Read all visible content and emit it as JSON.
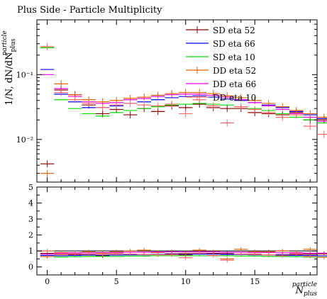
{
  "chart_data": {
    "type": "scatter",
    "title": "Plus Side - Particle Multiplicity",
    "ylabel": "1/N, dN/dN",
    "ylabel_sub": "plus",
    "ylabel_sup": "particle",
    "xlabel": "N",
    "xlabel_sub": "plus",
    "xlabel_sup": "particle",
    "yscale": "log",
    "xlim": [
      -0.75,
      19.5
    ],
    "ylim": [
      0.0022,
      0.7
    ],
    "xticks": [
      0,
      5,
      10,
      15
    ],
    "xtick_labels": [
      "0",
      "5",
      "10",
      "15"
    ],
    "yticks": [
      0.01,
      0.1
    ],
    "ytick_labels": [
      "10⁻²",
      "10⁻¹"
    ],
    "ratio": {
      "ylim": [
        -0.5,
        5.0
      ],
      "yticks": [
        0,
        1,
        2,
        3,
        4,
        5
      ],
      "ytick_labels": [
        "0",
        "1",
        "2",
        "3",
        "4",
        "5"
      ],
      "reference_line": 1.0
    },
    "legend_position": "top-right",
    "series": [
      {
        "name": "SD eta 52",
        "color": "#8b0000",
        "cross": true,
        "values": [
          0.0042,
          0.058,
          0.049,
          0.034,
          0.025,
          0.029,
          0.024,
          0.03,
          0.027,
          0.033,
          0.031,
          0.035,
          0.031,
          0.03,
          0.03,
          0.026,
          0.025,
          0.024,
          0.026,
          0.02,
          0.02
        ],
        "ratio": [
          0.85,
          0.78,
          0.78,
          0.77,
          0.7,
          0.82,
          0.78,
          0.78,
          0.78,
          0.82,
          0.76,
          0.82,
          0.85,
          0.84,
          0.8,
          0.8,
          0.75,
          0.76,
          0.78,
          0.8,
          0.82
        ]
      },
      {
        "name": "SD eta 66",
        "color": "#0000ff",
        "cross": false,
        "values": [
          0.12,
          0.05,
          0.038,
          0.031,
          0.031,
          0.033,
          0.036,
          0.038,
          0.041,
          0.044,
          0.046,
          0.047,
          0.045,
          0.042,
          0.04,
          0.037,
          0.034,
          0.031,
          0.027,
          0.024,
          0.021
        ],
        "ratio": [
          0.72,
          0.7,
          0.72,
          0.74,
          0.74,
          0.74,
          0.76,
          0.76,
          0.78,
          0.78,
          0.8,
          0.8,
          0.8,
          0.78,
          0.78,
          0.76,
          0.76,
          0.74,
          0.72,
          0.72,
          0.7
        ]
      },
      {
        "name": "SD eta 10",
        "color": "#00dd00",
        "cross": false,
        "values": [
          0.26,
          0.041,
          0.03,
          0.025,
          0.023,
          0.026,
          0.028,
          0.03,
          0.032,
          0.034,
          0.035,
          0.036,
          0.035,
          0.034,
          0.032,
          0.03,
          0.028,
          0.025,
          0.022,
          0.02,
          0.018
        ],
        "ratio": [
          1.0,
          0.62,
          0.64,
          0.66,
          0.66,
          0.66,
          0.68,
          0.68,
          0.7,
          0.7,
          0.7,
          0.7,
          0.7,
          0.7,
          0.68,
          0.68,
          0.66,
          0.66,
          0.64,
          0.62,
          0.62
        ]
      },
      {
        "name": "DD eta 52",
        "color": "#e06000",
        "cross": true,
        "values": [
          0.003,
          0.072,
          0.049,
          0.041,
          0.038,
          0.04,
          0.043,
          0.045,
          0.048,
          0.051,
          0.053,
          0.053,
          0.051,
          0.047,
          0.044,
          0.04,
          0.036,
          0.032,
          0.028,
          0.025,
          0.022
        ],
        "ratio": [
          0.65,
          0.9,
          0.88,
          0.95,
          0.86,
          0.95,
          1.0,
          1.05,
          0.9,
          0.95,
          0.85,
          1.05,
          0.95,
          0.5,
          1.1,
          0.95,
          0.95,
          1.0,
          0.9,
          1.1,
          0.85
        ]
      },
      {
        "name": "DD eta 66",
        "color": "#ee00ee",
        "cross": false,
        "values": [
          0.1,
          0.061,
          0.046,
          0.038,
          0.036,
          0.037,
          0.041,
          0.043,
          0.046,
          0.049,
          0.05,
          0.05,
          0.048,
          0.045,
          0.041,
          0.037,
          0.033,
          0.029,
          0.025,
          0.022,
          0.019
        ],
        "ratio": [
          0.8,
          0.86,
          0.88,
          0.88,
          0.9,
          0.9,
          0.92,
          0.92,
          0.94,
          0.94,
          0.94,
          0.94,
          0.94,
          0.92,
          0.92,
          0.9,
          0.9,
          0.88,
          0.88,
          0.86,
          0.86
        ]
      },
      {
        "name": "DD eta 10",
        "color": "#ff6666",
        "cross": true,
        "values": [
          0.27,
          0.053,
          0.041,
          0.036,
          0.031,
          0.034,
          0.036,
          0.034,
          0.033,
          0.035,
          0.025,
          0.041,
          0.033,
          0.018,
          0.032,
          0.029,
          0.026,
          0.022,
          0.024,
          0.016,
          0.012
        ],
        "ratio": [
          1.0,
          0.8,
          0.82,
          0.8,
          0.78,
          0.8,
          0.8,
          0.78,
          0.76,
          0.76,
          0.58,
          0.86,
          0.72,
          0.42,
          0.8,
          0.78,
          0.76,
          0.7,
          0.82,
          0.66,
          0.6
        ]
      }
    ]
  }
}
